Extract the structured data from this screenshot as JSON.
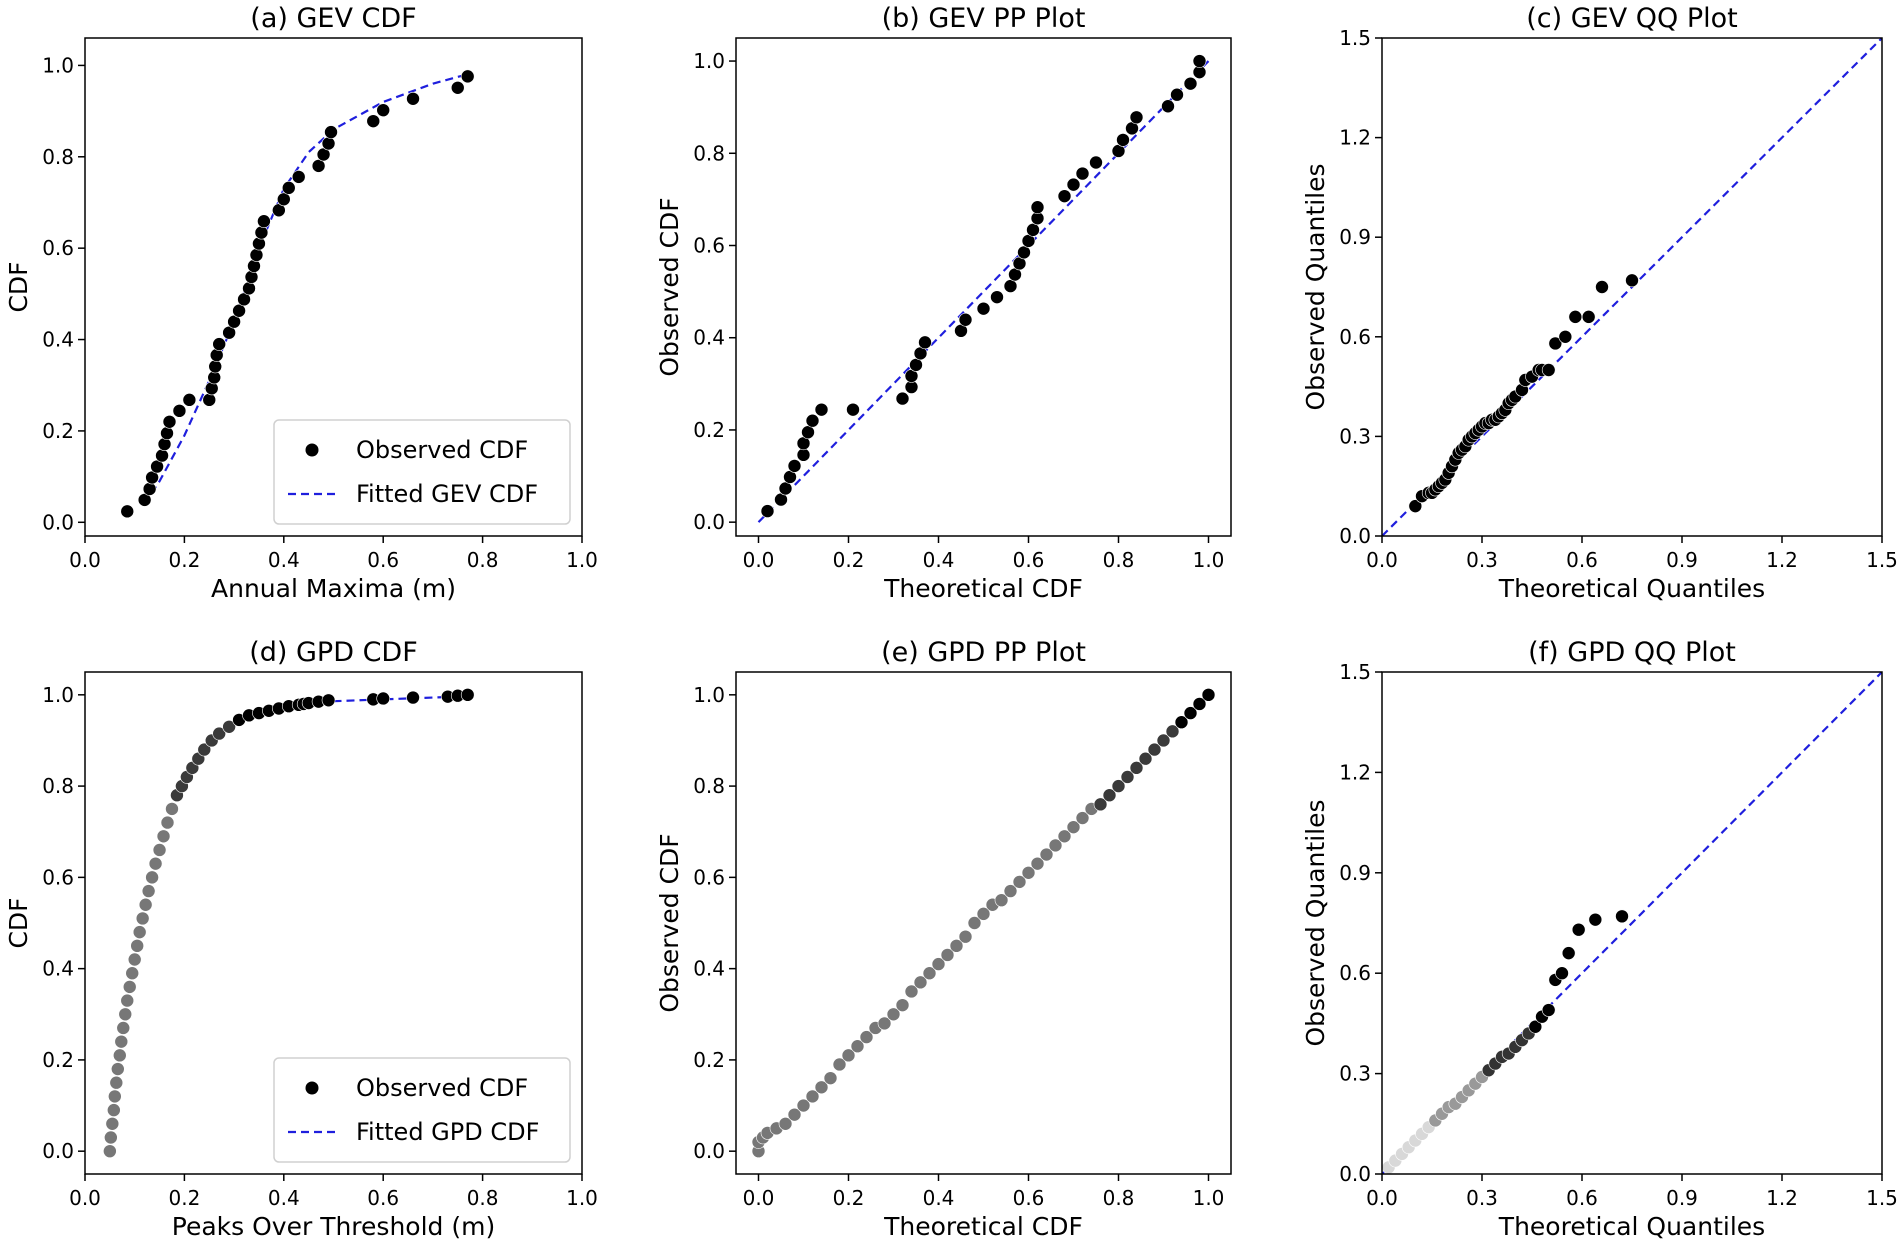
{
  "chart_data": [
    {
      "id": "a",
      "type": "scatter",
      "title": "(a) GEV CDF",
      "xlabel": "Annual Maxima (m)",
      "ylabel": "CDF",
      "xlim": [
        0,
        1.0
      ],
      "ylim": [
        -0.03,
        1.06
      ],
      "xticks": [
        0,
        0.2,
        0.4,
        0.6,
        0.8,
        1.0
      ],
      "xtick_labels": [
        "0.0",
        "0.2",
        "0.4",
        "0.6",
        "0.8",
        "1.0"
      ],
      "yticks": [
        0,
        0.2,
        0.4,
        0.6,
        0.8,
        1.0
      ],
      "ytick_labels": [
        "0.0",
        "0.2",
        "0.4",
        "0.6",
        "0.8",
        "1.0"
      ],
      "legend": {
        "position": "lower-right",
        "items": [
          {
            "label": "Observed CDF",
            "kind": "marker"
          },
          {
            "label": "Fitted GEV CDF",
            "kind": "dashed"
          }
        ]
      },
      "series": [
        {
          "name": "Observed CDF",
          "kind": "points",
          "x": [
            0.085,
            0.12,
            0.13,
            0.135,
            0.145,
            0.155,
            0.16,
            0.165,
            0.17,
            0.19,
            0.21,
            0.25,
            0.255,
            0.26,
            0.262,
            0.265,
            0.27,
            0.29,
            0.3,
            0.31,
            0.32,
            0.33,
            0.335,
            0.34,
            0.345,
            0.35,
            0.355,
            0.36,
            0.39,
            0.4,
            0.41,
            0.43,
            0.47,
            0.48,
            0.49,
            0.495,
            0.58,
            0.6,
            0.66,
            0.75,
            0.77
          ],
          "y": [
            0.024,
            0.049,
            0.073,
            0.098,
            0.122,
            0.146,
            0.171,
            0.195,
            0.22,
            0.244,
            0.268,
            0.268,
            0.293,
            0.317,
            0.341,
            0.366,
            0.39,
            0.415,
            0.439,
            0.463,
            0.488,
            0.512,
            0.537,
            0.561,
            0.585,
            0.61,
            0.634,
            0.659,
            0.683,
            0.707,
            0.732,
            0.756,
            0.78,
            0.805,
            0.829,
            0.854,
            0.878,
            0.902,
            0.927,
            0.951,
            0.976
          ]
        },
        {
          "name": "Fitted GEV CDF",
          "kind": "line",
          "x": [
            0.12,
            0.15,
            0.2,
            0.25,
            0.3,
            0.35,
            0.4,
            0.45,
            0.5,
            0.55,
            0.6,
            0.65,
            0.7,
            0.75,
            0.77
          ],
          "y": [
            0.04,
            0.09,
            0.19,
            0.31,
            0.44,
            0.6,
            0.73,
            0.81,
            0.86,
            0.89,
            0.92,
            0.94,
            0.96,
            0.975,
            0.98
          ]
        }
      ]
    },
    {
      "id": "b",
      "type": "scatter",
      "title": "(b) GEV PP Plot",
      "xlabel": "Theoretical CDF",
      "ylabel": "Observed CDF",
      "xlim": [
        -0.05,
        1.05
      ],
      "ylim": [
        -0.03,
        1.05
      ],
      "xticks": [
        0,
        0.2,
        0.4,
        0.6,
        0.8,
        1.0
      ],
      "xtick_labels": [
        "0.0",
        "0.2",
        "0.4",
        "0.6",
        "0.8",
        "1.0"
      ],
      "yticks": [
        0,
        0.2,
        0.4,
        0.6,
        0.8,
        1.0
      ],
      "ytick_labels": [
        "0.0",
        "0.2",
        "0.4",
        "0.6",
        "0.8",
        "1.0"
      ],
      "series": [
        {
          "name": "Observed",
          "kind": "points",
          "x": [
            0.02,
            0.05,
            0.06,
            0.07,
            0.08,
            0.1,
            0.1,
            0.11,
            0.12,
            0.14,
            0.21,
            0.32,
            0.34,
            0.34,
            0.35,
            0.36,
            0.37,
            0.45,
            0.46,
            0.5,
            0.53,
            0.56,
            0.57,
            0.58,
            0.59,
            0.6,
            0.61,
            0.62,
            0.62,
            0.68,
            0.7,
            0.72,
            0.75,
            0.8,
            0.81,
            0.83,
            0.84,
            0.91,
            0.93,
            0.96,
            0.98,
            0.98
          ],
          "y": [
            0.024,
            0.049,
            0.073,
            0.098,
            0.122,
            0.146,
            0.171,
            0.195,
            0.22,
            0.244,
            0.244,
            0.268,
            0.293,
            0.317,
            0.341,
            0.366,
            0.39,
            0.415,
            0.439,
            0.463,
            0.488,
            0.512,
            0.537,
            0.561,
            0.585,
            0.61,
            0.634,
            0.659,
            0.683,
            0.707,
            0.732,
            0.756,
            0.78,
            0.805,
            0.829,
            0.854,
            0.878,
            0.902,
            0.927,
            0.951,
            0.976,
            1.0
          ]
        },
        {
          "name": "Reference",
          "kind": "line",
          "x": [
            0,
            1
          ],
          "y": [
            0,
            1
          ]
        }
      ]
    },
    {
      "id": "c",
      "type": "scatter",
      "title": "(c) GEV QQ Plot",
      "xlabel": "Theoretical Quantiles",
      "ylabel": "Observed Quantiles",
      "xlim": [
        0,
        1.5
      ],
      "ylim": [
        0,
        1.5
      ],
      "xticks": [
        0,
        0.3,
        0.6,
        0.9,
        1.2,
        1.5
      ],
      "xtick_labels": [
        "0.0",
        "0.3",
        "0.6",
        "0.9",
        "1.2",
        "1.5"
      ],
      "yticks": [
        0,
        0.3,
        0.6,
        0.9,
        1.2,
        1.5
      ],
      "ytick_labels": [
        "0.0",
        "0.3",
        "0.6",
        "0.9",
        "1.2",
        "1.5"
      ],
      "series": [
        {
          "name": "Observed",
          "kind": "points",
          "x": [
            0.1,
            0.12,
            0.14,
            0.15,
            0.16,
            0.17,
            0.18,
            0.19,
            0.2,
            0.21,
            0.22,
            0.23,
            0.24,
            0.25,
            0.26,
            0.27,
            0.28,
            0.29,
            0.3,
            0.31,
            0.32,
            0.33,
            0.34,
            0.35,
            0.36,
            0.37,
            0.38,
            0.39,
            0.4,
            0.42,
            0.43,
            0.45,
            0.47,
            0.48,
            0.5,
            0.52,
            0.55,
            0.58,
            0.62,
            0.66,
            0.75
          ],
          "y": [
            0.09,
            0.12,
            0.13,
            0.13,
            0.14,
            0.15,
            0.16,
            0.17,
            0.19,
            0.21,
            0.23,
            0.25,
            0.26,
            0.27,
            0.29,
            0.3,
            0.31,
            0.32,
            0.33,
            0.34,
            0.34,
            0.35,
            0.35,
            0.36,
            0.37,
            0.38,
            0.4,
            0.41,
            0.42,
            0.44,
            0.47,
            0.48,
            0.5,
            0.5,
            0.5,
            0.58,
            0.6,
            0.66,
            0.66,
            0.75,
            0.77
          ]
        },
        {
          "name": "Reference",
          "kind": "line",
          "x": [
            0,
            1.5
          ],
          "y": [
            0,
            1.5
          ]
        }
      ]
    },
    {
      "id": "d",
      "type": "scatter",
      "title": "(d) GPD CDF",
      "xlabel": "Peaks Over Threshold (m)",
      "ylabel": "CDF",
      "xlim": [
        0,
        1.0
      ],
      "ylim": [
        -0.05,
        1.05
      ],
      "xticks": [
        0,
        0.2,
        0.4,
        0.6,
        0.8,
        1.0
      ],
      "xtick_labels": [
        "0.0",
        "0.2",
        "0.4",
        "0.6",
        "0.8",
        "1.0"
      ],
      "yticks": [
        0,
        0.2,
        0.4,
        0.6,
        0.8,
        1.0
      ],
      "ytick_labels": [
        "0.0",
        "0.2",
        "0.4",
        "0.6",
        "0.8",
        "1.0"
      ],
      "legend": {
        "position": "lower-right",
        "items": [
          {
            "label": "Observed CDF",
            "kind": "marker"
          },
          {
            "label": "Fitted GPD CDF",
            "kind": "dashed"
          }
        ]
      },
      "series": [
        {
          "name": "Observed CDF",
          "kind": "points",
          "x": [
            0.05,
            0.052,
            0.055,
            0.058,
            0.06,
            0.063,
            0.066,
            0.07,
            0.073,
            0.077,
            0.081,
            0.085,
            0.09,
            0.095,
            0.1,
            0.105,
            0.11,
            0.116,
            0.122,
            0.128,
            0.135,
            0.142,
            0.15,
            0.158,
            0.166,
            0.175,
            0.185,
            0.195,
            0.205,
            0.216,
            0.228,
            0.24,
            0.255,
            0.27,
            0.29,
            0.31,
            0.33,
            0.35,
            0.37,
            0.39,
            0.41,
            0.43,
            0.44,
            0.45,
            0.47,
            0.49,
            0.58,
            0.6,
            0.66,
            0.73,
            0.75,
            0.77
          ],
          "y": [
            0.0,
            0.03,
            0.06,
            0.09,
            0.12,
            0.15,
            0.18,
            0.21,
            0.24,
            0.27,
            0.3,
            0.33,
            0.36,
            0.39,
            0.42,
            0.45,
            0.48,
            0.51,
            0.54,
            0.57,
            0.6,
            0.63,
            0.66,
            0.69,
            0.72,
            0.75,
            0.78,
            0.8,
            0.82,
            0.84,
            0.86,
            0.88,
            0.9,
            0.915,
            0.93,
            0.945,
            0.955,
            0.96,
            0.965,
            0.97,
            0.975,
            0.978,
            0.98,
            0.982,
            0.985,
            0.988,
            0.99,
            0.992,
            0.994,
            0.996,
            0.998,
            1.0
          ]
        },
        {
          "name": "Fitted GPD CDF",
          "kind": "line",
          "x": [
            0.5,
            0.55,
            0.6,
            0.65,
            0.7,
            0.75,
            0.77
          ],
          "y": [
            0.986,
            0.988,
            0.99,
            0.992,
            0.994,
            0.996,
            0.997
          ]
        }
      ]
    },
    {
      "id": "e",
      "type": "scatter",
      "title": "(e) GPD PP Plot",
      "xlabel": "Theoretical CDF",
      "ylabel": "Observed CDF",
      "xlim": [
        -0.05,
        1.05
      ],
      "ylim": [
        -0.05,
        1.05
      ],
      "xticks": [
        0,
        0.2,
        0.4,
        0.6,
        0.8,
        1.0
      ],
      "xtick_labels": [
        "0.0",
        "0.2",
        "0.4",
        "0.6",
        "0.8",
        "1.0"
      ],
      "yticks": [
        0,
        0.2,
        0.4,
        0.6,
        0.8,
        1.0
      ],
      "ytick_labels": [
        "0.0",
        "0.2",
        "0.4",
        "0.6",
        "0.8",
        "1.0"
      ],
      "series": [
        {
          "name": "Observed",
          "kind": "points",
          "x": [
            0.0,
            0.0,
            0.01,
            0.02,
            0.04,
            0.06,
            0.08,
            0.1,
            0.12,
            0.14,
            0.16,
            0.18,
            0.2,
            0.22,
            0.24,
            0.26,
            0.28,
            0.3,
            0.32,
            0.34,
            0.36,
            0.38,
            0.4,
            0.42,
            0.44,
            0.46,
            0.48,
            0.5,
            0.52,
            0.54,
            0.56,
            0.58,
            0.6,
            0.62,
            0.64,
            0.66,
            0.68,
            0.7,
            0.72,
            0.74,
            0.76,
            0.78,
            0.8,
            0.82,
            0.84,
            0.86,
            0.88,
            0.9,
            0.92,
            0.94,
            0.96,
            0.98,
            1.0
          ],
          "y": [
            0.0,
            0.02,
            0.03,
            0.04,
            0.05,
            0.06,
            0.08,
            0.1,
            0.12,
            0.14,
            0.16,
            0.19,
            0.21,
            0.23,
            0.25,
            0.27,
            0.28,
            0.3,
            0.32,
            0.35,
            0.37,
            0.39,
            0.41,
            0.43,
            0.45,
            0.47,
            0.5,
            0.52,
            0.54,
            0.55,
            0.57,
            0.59,
            0.61,
            0.63,
            0.65,
            0.67,
            0.69,
            0.71,
            0.73,
            0.75,
            0.76,
            0.78,
            0.8,
            0.82,
            0.84,
            0.86,
            0.88,
            0.9,
            0.92,
            0.94,
            0.96,
            0.98,
            1.0
          ]
        }
      ]
    },
    {
      "id": "f",
      "type": "scatter",
      "title": "(f) GPD QQ Plot",
      "xlabel": "Theoretical Quantiles",
      "ylabel": "Observed Quantiles",
      "xlim": [
        0,
        1.5
      ],
      "ylim": [
        0,
        1.5
      ],
      "xticks": [
        0,
        0.3,
        0.6,
        0.9,
        1.2,
        1.5
      ],
      "xtick_labels": [
        "0.0",
        "0.3",
        "0.6",
        "0.9",
        "1.2",
        "1.5"
      ],
      "yticks": [
        0,
        0.3,
        0.6,
        0.9,
        1.2,
        1.5
      ],
      "ytick_labels": [
        "0.0",
        "0.3",
        "0.6",
        "0.9",
        "1.2",
        "1.5"
      ],
      "series": [
        {
          "name": "Observed",
          "kind": "points",
          "x": [
            0.02,
            0.04,
            0.06,
            0.08,
            0.1,
            0.12,
            0.14,
            0.16,
            0.18,
            0.2,
            0.22,
            0.24,
            0.26,
            0.28,
            0.3,
            0.32,
            0.34,
            0.36,
            0.38,
            0.4,
            0.42,
            0.44,
            0.46,
            0.48,
            0.5,
            0.52,
            0.54,
            0.56,
            0.59,
            0.64,
            0.72
          ],
          "y": [
            0.02,
            0.04,
            0.06,
            0.08,
            0.1,
            0.12,
            0.14,
            0.16,
            0.18,
            0.2,
            0.21,
            0.23,
            0.25,
            0.27,
            0.29,
            0.31,
            0.33,
            0.35,
            0.36,
            0.38,
            0.4,
            0.42,
            0.44,
            0.47,
            0.49,
            0.58,
            0.6,
            0.66,
            0.73,
            0.76,
            0.77
          ]
        },
        {
          "name": "Reference",
          "kind": "line",
          "x": [
            0,
            1.5
          ],
          "y": [
            0,
            1.5
          ]
        }
      ]
    }
  ]
}
